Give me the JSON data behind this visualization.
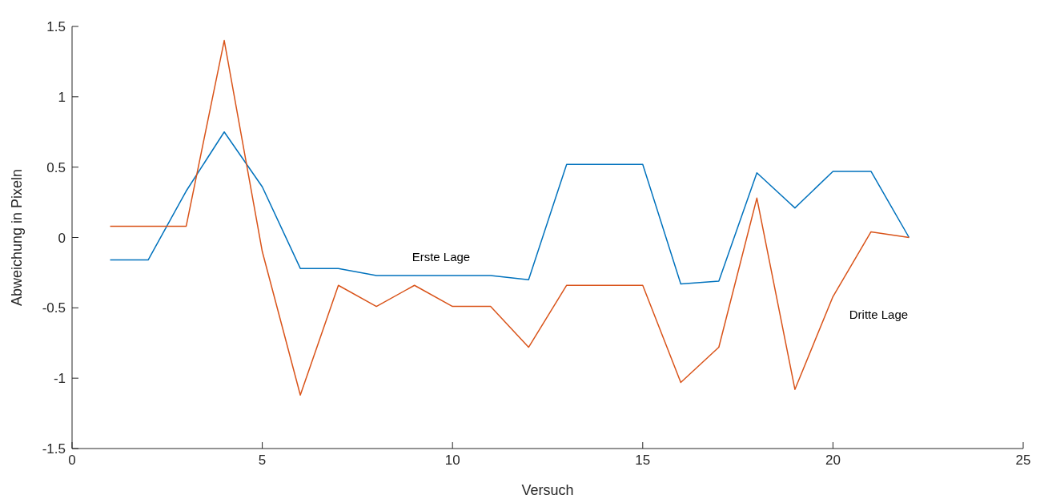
{
  "chart_data": {
    "type": "line",
    "xlabel": "Versuch",
    "ylabel": "Abweichung in Pixeln",
    "x": [
      1,
      2,
      3,
      4,
      5,
      6,
      7,
      8,
      9,
      10,
      11,
      12,
      13,
      14,
      15,
      16,
      17,
      18,
      19,
      20,
      21,
      22
    ],
    "series": [
      {
        "name": "Erste Lage",
        "color": "#0072bd",
        "values": [
          -0.16,
          -0.16,
          0.33,
          0.75,
          0.36,
          -0.22,
          -0.22,
          -0.27,
          -0.27,
          -0.27,
          -0.27,
          -0.3,
          0.52,
          0.52,
          0.52,
          -0.33,
          -0.31,
          0.46,
          0.21,
          0.47,
          0.47,
          0
        ]
      },
      {
        "name": "Dritte Lage",
        "color": "#d95319",
        "values": [
          0.08,
          0.08,
          0.08,
          1.4,
          -0.1,
          -1.12,
          -0.34,
          -0.49,
          -0.34,
          -0.49,
          -0.49,
          -0.78,
          -0.34,
          -0.34,
          -0.34,
          -1.03,
          -0.78,
          0.28,
          -1.08,
          -0.42,
          0.04,
          0
        ]
      }
    ],
    "xlim": [
      0,
      25
    ],
    "xticks": [
      0,
      5,
      10,
      15,
      20,
      25
    ],
    "ylim": [
      -1.5,
      1.5
    ],
    "yticks": [
      -1.5,
      -1,
      -0.5,
      0,
      0.5,
      1,
      1.5
    ],
    "grid": false,
    "marker": "none",
    "line_style": "solid"
  }
}
